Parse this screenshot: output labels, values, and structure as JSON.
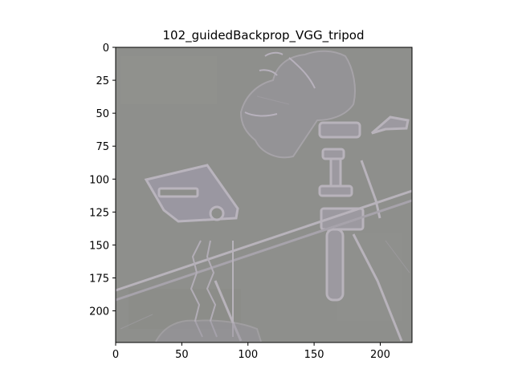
{
  "figure": {
    "title": "102_guidedBackprop_VGG_tripod",
    "background_color": "#ffffff",
    "image_base_color": "#8e8f8c"
  },
  "axes": {
    "x_ticks": [
      "0",
      "50",
      "100",
      "150",
      "200"
    ],
    "y_ticks": [
      "0",
      "25",
      "50",
      "75",
      "100",
      "125",
      "150",
      "175",
      "200"
    ],
    "x_range": [
      0,
      224
    ],
    "y_range": [
      0,
      224
    ],
    "x_tick_values": [
      0,
      50,
      100,
      150,
      200
    ],
    "y_tick_values": [
      0,
      25,
      50,
      75,
      100,
      125,
      150,
      175,
      200
    ]
  },
  "image": {
    "description_icon": "guided-backprop-saliency-map",
    "subject_icons": [
      "camera-icon",
      "tripod-icon",
      "dog-icon"
    ]
  }
}
